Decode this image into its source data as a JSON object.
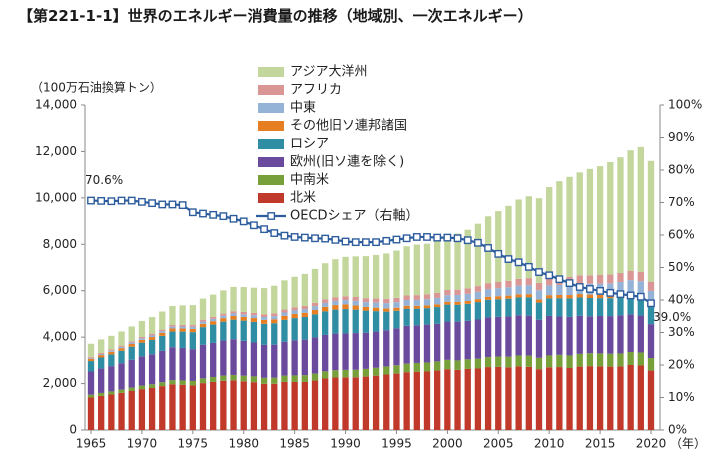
{
  "title": "【第221-1-1】世界のエネルギー消費量の推移（地域別、一次エネルギー）",
  "chart_data": {
    "type": "bar",
    "stacked": true,
    "y_unit_label": "（100万石油換算トン）",
    "x_unit_label": "（年）",
    "x_tick_labels": [
      "1965",
      "1970",
      "1975",
      "1980",
      "1985",
      "1990",
      "1995",
      "2000",
      "2005",
      "2010",
      "2015",
      "2020"
    ],
    "ylim": [
      0,
      14000
    ],
    "y_ticks": [
      "0",
      "2,000",
      "4,000",
      "6,000",
      "8,000",
      "10,000",
      "12,000",
      "14,000"
    ],
    "y2lim": [
      0,
      100
    ],
    "y2_ticks": [
      "0%",
      "10%",
      "20%",
      "30%",
      "40%",
      "50%",
      "60%",
      "70%",
      "80%",
      "90%",
      "100%"
    ],
    "legend_position": "top-center",
    "grid": false,
    "years": [
      1965,
      1966,
      1967,
      1968,
      1969,
      1970,
      1971,
      1972,
      1973,
      1974,
      1975,
      1976,
      1977,
      1978,
      1979,
      1980,
      1981,
      1982,
      1983,
      1984,
      1985,
      1986,
      1987,
      1988,
      1989,
      1990,
      1991,
      1992,
      1993,
      1994,
      1995,
      1996,
      1997,
      1998,
      1999,
      2000,
      2001,
      2002,
      2003,
      2004,
      2005,
      2006,
      2007,
      2008,
      2009,
      2010,
      2011,
      2012,
      2013,
      2014,
      2015,
      2016,
      2017,
      2018,
      2019,
      2020
    ],
    "series": [
      {
        "name": "北米",
        "color": "#c0392b",
        "values": [
          1400,
          1470,
          1530,
          1600,
          1680,
          1760,
          1810,
          1890,
          1970,
          1950,
          1920,
          2020,
          2070,
          2120,
          2140,
          2100,
          2060,
          1990,
          1990,
          2070,
          2070,
          2070,
          2130,
          2220,
          2260,
          2270,
          2270,
          2300,
          2340,
          2390,
          2430,
          2490,
          2510,
          2520,
          2560,
          2620,
          2590,
          2630,
          2650,
          2710,
          2720,
          2700,
          2740,
          2720,
          2620,
          2700,
          2710,
          2670,
          2730,
          2750,
          2740,
          2730,
          2740,
          2800,
          2780,
          2560
        ]
      },
      {
        "name": "中南米",
        "color": "#77a03a",
        "values": [
          120,
          126,
          132,
          139,
          146,
          153,
          161,
          169,
          177,
          185,
          194,
          204,
          214,
          223,
          232,
          241,
          250,
          258,
          265,
          273,
          281,
          290,
          298,
          306,
          313,
          319,
          325,
          332,
          340,
          349,
          358,
          368,
          379,
          390,
          396,
          402,
          408,
          414,
          420,
          430,
          443,
          457,
          471,
          485,
          489,
          513,
          528,
          542,
          551,
          557,
          560,
          556,
          558,
          560,
          560,
          540
        ]
      },
      {
        "name": "欧州(旧ソ連を除く)",
        "color": "#6a4a9c",
        "values": [
          1000,
          1050,
          1090,
          1140,
          1200,
          1260,
          1290,
          1350,
          1420,
          1400,
          1370,
          1450,
          1470,
          1510,
          1540,
          1500,
          1460,
          1420,
          1420,
          1460,
          1510,
          1530,
          1560,
          1570,
          1580,
          1570,
          1580,
          1560,
          1560,
          1560,
          1590,
          1630,
          1620,
          1630,
          1620,
          1650,
          1670,
          1660,
          1690,
          1710,
          1710,
          1730,
          1730,
          1720,
          1640,
          1700,
          1650,
          1660,
          1640,
          1590,
          1610,
          1620,
          1640,
          1620,
          1590,
          1460
        ]
      },
      {
        "name": "ロシア",
        "color": "#2f8ea3",
        "values": [
          450,
          478,
          506,
          534,
          562,
          590,
          618,
          646,
          674,
          702,
          730,
          758,
          786,
          814,
          842,
          870,
          888,
          906,
          924,
          942,
          960,
          978,
          996,
          1014,
          1032,
          1050,
          1010,
          950,
          880,
          800,
          760,
          740,
          720,
          710,
          720,
          730,
          730,
          730,
          750,
          760,
          760,
          770,
          770,
          790,
          740,
          760,
          790,
          800,
          790,
          790,
          770,
          770,
          780,
          810,
          810,
          780
        ]
      },
      {
        "name": "その他旧ソ連邦諸国",
        "color": "#e67e22",
        "values": [
          100,
          104,
          108,
          112,
          116,
          120,
          124,
          128,
          132,
          136,
          140,
          144,
          148,
          152,
          156,
          160,
          164,
          168,
          172,
          176,
          180,
          184,
          188,
          192,
          196,
          200,
          180,
          160,
          150,
          140,
          130,
          125,
          120,
          120,
          118,
          120,
          122,
          124,
          126,
          128,
          130,
          132,
          134,
          136,
          130,
          136,
          140,
          142,
          144,
          144,
          142,
          144,
          146,
          150,
          150,
          145
        ]
      },
      {
        "name": "中東",
        "color": "#95b3d7",
        "values": [
          40,
          45,
          50,
          55,
          60,
          65,
          70,
          75,
          80,
          85,
          90,
          95,
          100,
          105,
          110,
          115,
          120,
          126,
          133,
          140,
          148,
          156,
          164,
          172,
          180,
          188,
          196,
          206,
          216,
          226,
          236,
          246,
          256,
          266,
          276,
          286,
          296,
          306,
          318,
          332,
          346,
          360,
          374,
          388,
          402,
          420,
          430,
          444,
          456,
          470,
          484,
          498,
          512,
          516,
          522,
          508
        ]
      },
      {
        "name": "アフリカ",
        "color": "#d99694",
        "values": [
          45,
          48,
          51,
          54,
          57,
          60,
          63,
          66,
          69,
          72,
          76,
          80,
          85,
          90,
          96,
          102,
          108,
          114,
          120,
          126,
          132,
          138,
          144,
          150,
          156,
          162,
          168,
          172,
          176,
          182,
          188,
          196,
          204,
          210,
          216,
          222,
          228,
          234,
          244,
          256,
          268,
          278,
          290,
          302,
          316,
          326,
          332,
          340,
          350,
          360,
          370,
          378,
          386,
          396,
          404,
          396
        ]
      },
      {
        "name": "アジア大洋州",
        "color": "#c3d69b",
        "values": [
          560,
          580,
          590,
          610,
          640,
          690,
          730,
          780,
          820,
          840,
          860,
          910,
          960,
          1000,
          1050,
          1070,
          1080,
          1130,
          1190,
          1260,
          1320,
          1380,
          1460,
          1560,
          1640,
          1700,
          1750,
          1810,
          1880,
          1960,
          2040,
          2120,
          2180,
          2180,
          2250,
          2350,
          2420,
          2530,
          2690,
          2880,
          3050,
          3230,
          3420,
          3530,
          3650,
          3910,
          4140,
          4310,
          4440,
          4590,
          4690,
          4850,
          4990,
          5200,
          5380,
          5210
        ]
      }
    ],
    "oecd_share": {
      "name": "OECDシェア（右軸）",
      "color": "#2e5d9e",
      "values": [
        70.6,
        70.5,
        70.4,
        70.6,
        70.6,
        70.2,
        69.8,
        69.4,
        69.4,
        69.2,
        67.0,
        66.6,
        66.2,
        65.8,
        65.0,
        64.2,
        63.0,
        61.8,
        60.6,
        59.8,
        59.4,
        59.2,
        59.0,
        58.9,
        58.5,
        58.0,
        57.8,
        57.8,
        57.8,
        58.2,
        58.6,
        59.0,
        59.4,
        59.4,
        59.2,
        59.2,
        59.0,
        58.4,
        57.6,
        56.0,
        54.2,
        52.6,
        51.6,
        50.2,
        48.6,
        47.6,
        46.4,
        45.2,
        44.0,
        43.4,
        42.8,
        42.2,
        41.8,
        41.4,
        41.0,
        39.0
      ]
    },
    "annotations": [
      "70.6%",
      "39.0%"
    ]
  }
}
